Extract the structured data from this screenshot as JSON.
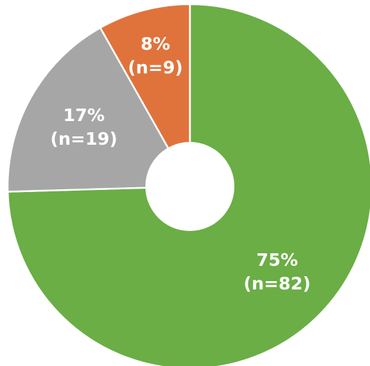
{
  "chart_data": {
    "type": "pie",
    "donut": true,
    "title": "",
    "legend": "none",
    "slices": [
      {
        "label_pct": "75%",
        "label_n": "(n=82)",
        "value": 82,
        "percent": 75,
        "color": "#6aae45"
      },
      {
        "label_pct": "17%",
        "label_n": "(n=19)",
        "value": 19,
        "percent": 17,
        "color": "#a6a6a6"
      },
      {
        "label_pct": "8%",
        "label_n": "(n=9)",
        "value": 9,
        "percent": 8,
        "color": "#e0733c"
      }
    ],
    "start_position": "12 o'clock",
    "direction": "clockwise",
    "slice_border_color": "#ffffff",
    "hole_color": "#ffffff"
  }
}
